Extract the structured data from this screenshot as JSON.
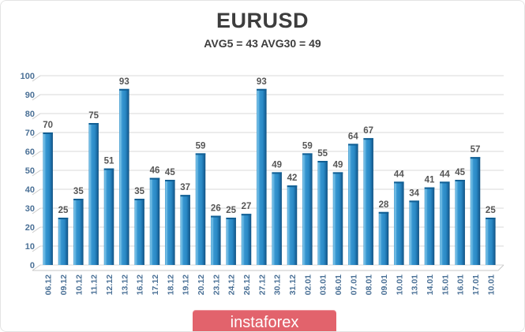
{
  "header": {
    "title": "EURUSD",
    "subtitle": "AVG5 = 43 AVG30 = 49"
  },
  "chart_data": {
    "type": "bar",
    "title": "EURUSD",
    "subtitle": "AVG5 = 43 AVG30 = 49",
    "categories": [
      "06.12",
      "09.12",
      "10.12",
      "11.12",
      "12.12",
      "13.12",
      "16.12",
      "17.12",
      "18.12",
      "19.12",
      "20.12",
      "23.12",
      "24.12",
      "26.12",
      "27.12",
      "30.12",
      "31.12",
      "02.01",
      "03.01",
      "06.01",
      "07.01",
      "08.01",
      "09.01",
      "10.01",
      "13.01",
      "14.01",
      "15.01",
      "16.01",
      "17.01",
      "10.01"
    ],
    "values": [
      70,
      25,
      35,
      75,
      51,
      93,
      35,
      46,
      45,
      37,
      59,
      26,
      25,
      27,
      93,
      49,
      42,
      59,
      55,
      49,
      64,
      67,
      28,
      44,
      34,
      41,
      44,
      45,
      57,
      25
    ],
    "xlabel": "",
    "ylabel": "",
    "ylim": [
      0,
      100
    ],
    "ytick_step": 10,
    "grid": true,
    "legend": false,
    "colors": {
      "bar_main": "#2e8cc7",
      "bar_highlight": "#7ec6ea",
      "bar_dark": "#0e4f7d",
      "bar_cap": "#115f94",
      "gridline": "#d9d9d9",
      "floor_line": "#c9c9c9",
      "axis_label": "#4a7096",
      "value_label": "#565656"
    }
  },
  "watermark": {
    "label": "instaforex",
    "bg_color": "#e2636c",
    "text_color": "#ffffff"
  }
}
